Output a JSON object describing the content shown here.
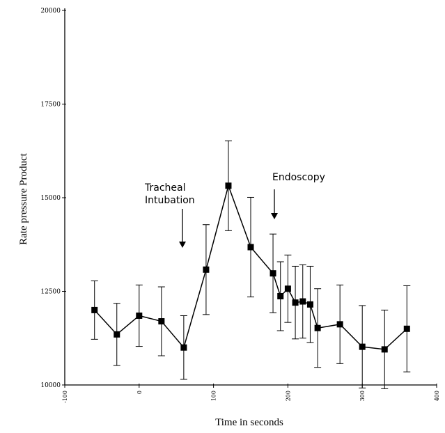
{
  "chart_data": {
    "type": "line",
    "title": "",
    "xlabel": "Time in seconds",
    "ylabel": "Rate pressure Product",
    "xlim": [
      -100,
      400
    ],
    "ylim": [
      10000,
      20000
    ],
    "x_ticks": [
      -100,
      0,
      100,
      200,
      300,
      400
    ],
    "x_tick_labels": [
      "-100",
      "0",
      "100",
      "200",
      "300",
      "400"
    ],
    "y_ticks": [
      10000,
      12500,
      15000,
      17500,
      20000
    ],
    "y_tick_labels": [
      "10000",
      "12500",
      "15000",
      "17500",
      "20000"
    ],
    "grid": false,
    "series": [
      {
        "x": [
          -60,
          -30,
          0,
          30,
          60,
          90,
          120,
          150,
          180,
          190,
          200,
          210,
          220,
          230,
          240,
          270,
          300,
          330,
          360
        ],
        "y": [
          12000,
          11350,
          11850,
          11700,
          11000,
          13080,
          15320,
          13680,
          12980,
          12370,
          12570,
          12200,
          12230,
          12150,
          11520,
          11620,
          11020,
          10950,
          11500
        ],
        "y_err": [
          780,
          830,
          820,
          920,
          850,
          1200,
          1200,
          1330,
          1050,
          920,
          900,
          970,
          980,
          1020,
          1050,
          1050,
          1100,
          1050,
          1150
        ]
      }
    ],
    "annotations": [
      {
        "lines": [
          "Tracheal",
          "Intubation"
        ],
        "x": 60,
        "arrow": "down"
      },
      {
        "lines": [
          "Endoscopy"
        ],
        "x": 180,
        "arrow": "down"
      }
    ]
  }
}
